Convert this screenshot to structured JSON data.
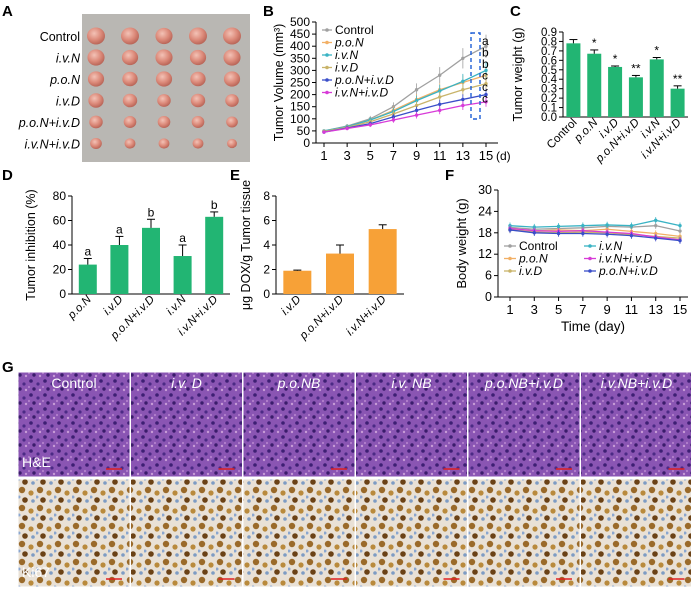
{
  "panel_letters": [
    "A",
    "B",
    "C",
    "D",
    "E",
    "F",
    "G"
  ],
  "colors": {
    "green": "#22b573",
    "orange": "#f7a137",
    "control": "#a0a0a0",
    "poN": "#f2b066",
    "ivN": "#39b3c4",
    "ivD": "#c9b46a",
    "poNivD": "#3a4ec9",
    "ivNivD": "#d83bd8"
  },
  "panel_a": {
    "rows": [
      "Control",
      "i.v.N",
      "p.o.N",
      "i.v.D",
      "p.o.N+i.v.D",
      "i.v.N+i.v.D"
    ]
  },
  "panel_g": {
    "columns": [
      "Control",
      "i.v. D",
      "p.o.NB",
      "i.v. NB",
      "p.o.NB+i.v.D",
      "i.v.NB+i.v.D"
    ],
    "row_labels": [
      "H&E",
      "Ki67"
    ]
  },
  "chart_data": [
    {
      "id": "B",
      "type": "line",
      "ylabel": "Tumor Volume (mm³)",
      "x_unit": "(d)",
      "x": [
        1,
        3,
        5,
        7,
        9,
        11,
        13,
        15
      ],
      "ylim": [
        0,
        500
      ],
      "yticks": [
        0,
        50,
        100,
        150,
        200,
        250,
        300,
        350,
        400,
        450,
        500
      ],
      "series": [
        {
          "name": "Control",
          "color_key": "control",
          "values": [
            50,
            70,
            100,
            150,
            220,
            280,
            350,
            400
          ]
        },
        {
          "name": "p.o.N",
          "color_key": "poN",
          "values": [
            48,
            68,
            95,
            135,
            180,
            220,
            250,
            280
          ]
        },
        {
          "name": "i.v.N",
          "color_key": "ivN",
          "values": [
            50,
            68,
            95,
            130,
            175,
            215,
            255,
            300
          ]
        },
        {
          "name": "i.v.D",
          "color_key": "ivD",
          "values": [
            48,
            65,
            88,
            120,
            155,
            190,
            220,
            245
          ]
        },
        {
          "name": "p.o.N+i.v.D",
          "color_key": "poNivD",
          "values": [
            45,
            62,
            80,
            108,
            135,
            160,
            180,
            200
          ]
        },
        {
          "name": "i.v.N+i.v.D",
          "color_key": "ivNivD",
          "values": [
            45,
            60,
            75,
            95,
            115,
            135,
            155,
            170
          ]
        }
      ],
      "end_letters": [
        "a",
        "b",
        "b",
        "c",
        "c",
        "c"
      ]
    },
    {
      "id": "C",
      "type": "bar",
      "ylabel": "Tumor weight (g)",
      "ylim": [
        0,
        0.9
      ],
      "yticks": [
        0.0,
        0.1,
        0.2,
        0.3,
        0.4,
        0.5,
        0.6,
        0.7,
        0.8,
        0.9
      ],
      "categories": [
        "Control",
        "p.o.N",
        "i.v.D",
        "p.o.N+i.v.D",
        "i.v.N",
        "i.v.N+i.v.D"
      ],
      "values": [
        0.78,
        0.67,
        0.53,
        0.42,
        0.61,
        0.3
      ],
      "errors": [
        0.04,
        0.04,
        0.01,
        0.02,
        0.02,
        0.03
      ],
      "annotations": [
        "",
        "*",
        "*",
        "**",
        "*",
        "**"
      ]
    },
    {
      "id": "D",
      "type": "bar",
      "ylabel": "Tumor inhibition (%)",
      "ylim": [
        0,
        80
      ],
      "yticks": [
        0,
        20,
        40,
        60,
        80
      ],
      "categories": [
        "p.o.N",
        "i.v.D",
        "p.o.N+i.v.D",
        "i.v.N",
        "i.v.N+i.v.D"
      ],
      "values": [
        24,
        40,
        54,
        31,
        63
      ],
      "errors": [
        5,
        7,
        7,
        9,
        4
      ],
      "annotations": [
        "a",
        "a",
        "b",
        "a",
        "b"
      ]
    },
    {
      "id": "E",
      "type": "bar",
      "ylabel": "μg DOX/g Tumor tissue",
      "ylim": [
        0,
        8
      ],
      "yticks": [
        0,
        2,
        4,
        6,
        8
      ],
      "categories": [
        "i.v.D",
        "p.o.N+i.v.D",
        "i.v.N+i.v.D"
      ],
      "values": [
        1.9,
        3.3,
        5.3
      ],
      "errors": [
        0.05,
        0.7,
        0.35
      ]
    },
    {
      "id": "F",
      "type": "line",
      "ylabel": "Body weight (g)",
      "xlabel": "Time (day)",
      "x": [
        1,
        3,
        5,
        7,
        9,
        11,
        13,
        15
      ],
      "ylim": [
        0,
        30
      ],
      "yticks": [
        0,
        6,
        12,
        18,
        24,
        30
      ],
      "series": [
        {
          "name": "Control",
          "color_key": "control",
          "values": [
            19.5,
            19.0,
            19.2,
            19.4,
            19.8,
            19.6,
            20.0,
            18.5
          ]
        },
        {
          "name": "p.o.N",
          "color_key": "poN",
          "values": [
            19.0,
            18.5,
            18.8,
            18.6,
            19.0,
            18.4,
            17.8,
            17.0
          ]
        },
        {
          "name": "i.v.D",
          "color_key": "ivD",
          "values": [
            18.8,
            18.2,
            18.0,
            18.2,
            18.0,
            17.5,
            17.0,
            16.5
          ]
        },
        {
          "name": "i.v.N",
          "color_key": "ivN",
          "values": [
            20.0,
            19.6,
            19.8,
            20.0,
            20.2,
            20.0,
            21.5,
            20.0
          ]
        },
        {
          "name": "i.v.N+i.v.D",
          "color_key": "ivNivD",
          "values": [
            19.2,
            18.6,
            18.4,
            18.6,
            18.2,
            17.8,
            16.8,
            16.0
          ]
        },
        {
          "name": "p.o.N+i.v.D",
          "color_key": "poNivD",
          "values": [
            18.8,
            18.0,
            17.8,
            17.8,
            17.6,
            17.2,
            16.5,
            15.8
          ]
        }
      ]
    }
  ]
}
